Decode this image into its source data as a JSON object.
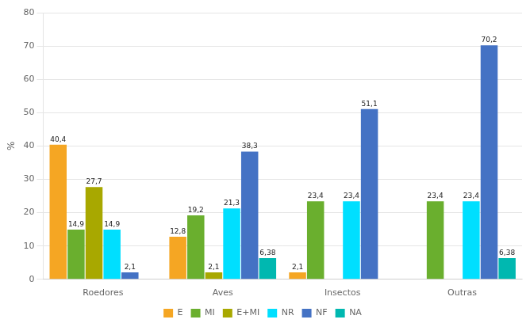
{
  "chart_data": {
    "type": "bar",
    "categories": [
      "Roedores",
      "Aves",
      "Insectos",
      "Outras"
    ],
    "series": [
      {
        "name": "E",
        "color": "#F5A623",
        "values": [
          40.4,
          12.8,
          2.1,
          0.0
        ],
        "value_labels": [
          "40,4",
          "12,8",
          "2,1",
          null
        ]
      },
      {
        "name": "MI",
        "color": "#6AAF2E",
        "values": [
          14.9,
          19.2,
          23.4,
          23.4
        ],
        "value_labels": [
          "14,9",
          "19,2",
          "23,4",
          "23,4"
        ]
      },
      {
        "name": "E+MI",
        "color": "#A8A800",
        "values": [
          27.7,
          2.1,
          0.0,
          0.0
        ],
        "value_labels": [
          "27,7",
          "2,1",
          null,
          null
        ]
      },
      {
        "name": "NR",
        "color": "#00DFFF",
        "values": [
          14.9,
          21.3,
          23.4,
          23.4
        ],
        "value_labels": [
          "14,9",
          "21,3",
          "23,4",
          "23,4"
        ]
      },
      {
        "name": "NF",
        "color": "#4472C4",
        "values": [
          2.1,
          38.3,
          51.1,
          70.2
        ],
        "value_labels": [
          "2,1",
          "38,3",
          "51,1",
          "70,2"
        ]
      },
      {
        "name": "NA",
        "color": "#00B8B0",
        "values": [
          0.0,
          6.38,
          0.0,
          6.38
        ],
        "value_labels": [
          null,
          "6,38",
          null,
          "6,38"
        ]
      }
    ],
    "y_label": "%",
    "ylim": [
      0,
      80
    ],
    "yticks": [
      0,
      10,
      20,
      30,
      40,
      50,
      60,
      70,
      80
    ],
    "grid": true,
    "legend": "bottom",
    "data_labels": true
  }
}
